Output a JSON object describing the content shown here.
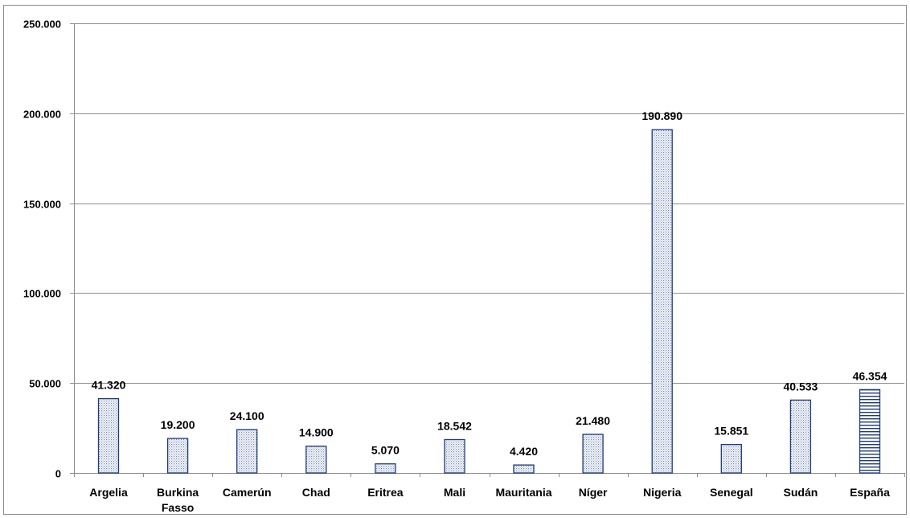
{
  "chart_data": {
    "type": "bar",
    "categories": [
      "Argelia",
      "Burkina Fasso",
      "Camerún",
      "Chad",
      "Eritrea",
      "Mali",
      "Mauritania",
      "Níger",
      "Nigeria",
      "Senegal",
      "Sudán",
      "España"
    ],
    "category_lines": [
      [
        "Argelia"
      ],
      [
        "Burkina",
        "Fasso"
      ],
      [
        "Camerún"
      ],
      [
        "Chad"
      ],
      [
        "Eritrea"
      ],
      [
        "Mali"
      ],
      [
        "Mauritania"
      ],
      [
        "Níger"
      ],
      [
        "Nigeria"
      ],
      [
        "Senegal"
      ],
      [
        "Sudán"
      ],
      [
        "España"
      ]
    ],
    "values": [
      41320,
      19200,
      24100,
      14900,
      5070,
      18542,
      4420,
      21480,
      190890,
      15851,
      40533,
      46354
    ],
    "value_labels": [
      "41.320",
      "19.200",
      "24.100",
      "14.900",
      "5.070",
      "18.542",
      "4.420",
      "21.480",
      "190.890",
      "15.851",
      "40.533",
      "46.354"
    ],
    "patterns": [
      "dotted",
      "dotted",
      "dotted",
      "dotted",
      "dotted",
      "dotted",
      "dotted",
      "dotted",
      "dotted",
      "dotted",
      "dotted",
      "horizontal-stripes"
    ],
    "ylim": [
      0,
      250000
    ],
    "yticks": [
      0,
      50000,
      100000,
      150000,
      200000,
      250000
    ],
    "ytick_labels": [
      "0",
      "50.000",
      "100.000",
      "150.000",
      "200.000",
      "250.000"
    ],
    "grid": true,
    "title": "",
    "xlabel": "",
    "ylabel": "",
    "colors": {
      "bar_stroke": "#1f3a7a",
      "bar_dot": "#6f86b8",
      "stripe": "#1f3a7a",
      "gridline": "#8c8c8c",
      "axis": "#8c8c8c"
    }
  }
}
